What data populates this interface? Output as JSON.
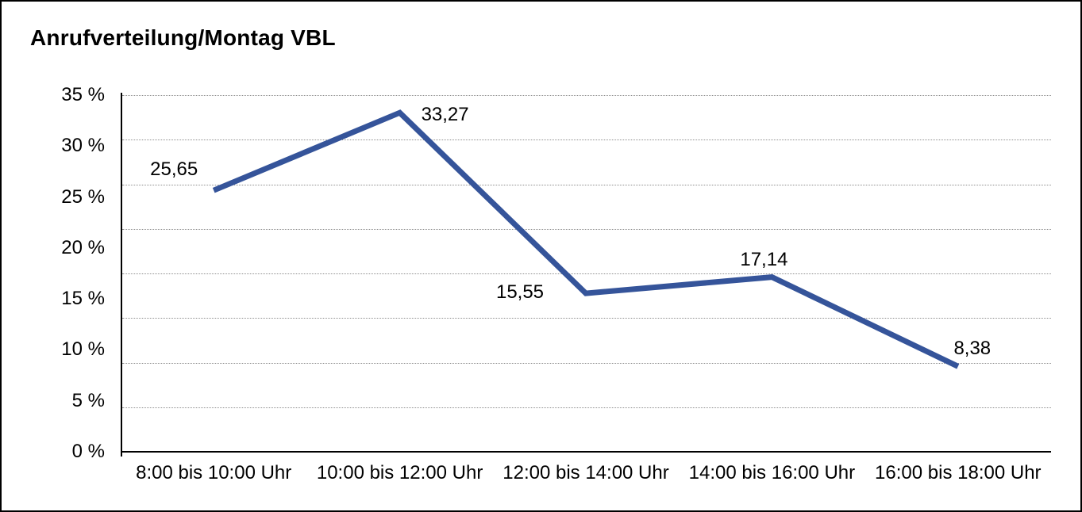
{
  "title": "Anrufverteilung/Montag VBL",
  "chart_data": {
    "type": "line",
    "title": "Anrufverteilung/Montag VBL",
    "categories": [
      "8:00 bis 10:00 Uhr",
      "10:00 bis 12:00 Uhr",
      "12:00 bis 14:00 Uhr",
      "14:00 bis 16:00 Uhr",
      "16:00 bis 18:00 Uhr"
    ],
    "values": [
      25.65,
      33.27,
      15.55,
      17.14,
      8.38
    ],
    "value_labels": [
      "25,65",
      "33,27",
      "15,55",
      "17,14",
      "8,38"
    ],
    "xlabel": "",
    "ylabel": "",
    "ylim": [
      0,
      35
    ],
    "y_tick_values": [
      35,
      30,
      25,
      20,
      15,
      10,
      5,
      0
    ],
    "y_tick_labels": [
      "35 %",
      "30 %",
      "25 %",
      "20 %",
      "15 %",
      "10 %",
      "5 %",
      "0 %"
    ],
    "grid": "horizontal-dotted-8-divisions",
    "legend": "none",
    "line_color": "#35549A",
    "text_color": "#000000"
  }
}
